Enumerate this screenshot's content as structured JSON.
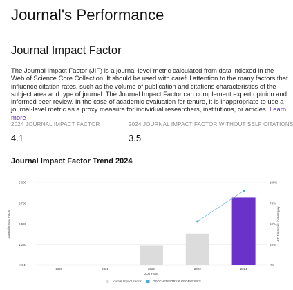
{
  "page": {
    "title": "Journal's Performance"
  },
  "jif_section": {
    "title": "Journal Impact Factor",
    "description": "The Journal Impact Factor (JIF) is a journal-level metric calculated from data indexed in the Web of Science Core Collection. It should be used with careful attention to the many factors that influence citation rates, such as the volume of publication and citations characteristics of the subject area and type of journal. The Journal Impact Factor can complement expert opinion and informed peer review. In the case of academic evaluation for tenure, it is inappropriate to use a journal-level metric as a proxy measure for individual researchers, institutions, or articles.",
    "learn_more": "Learn more"
  },
  "metrics": [
    {
      "label": "2024 JOURNAL IMPACT FACTOR",
      "value": "4.1"
    },
    {
      "label": "2024 JOURNAL IMPACT FACTOR WITHOUT SELF CITATIONS",
      "value": "3.5"
    }
  ],
  "trend": {
    "title": "Journal Impact Factor Trend 2024"
  },
  "chart_data": {
    "type": "bar",
    "xlabel": "JCR Years",
    "ylabel": "Journal Impact Factor",
    "y2label": "JIF Percentile in Category",
    "categories": [
      "2020",
      "2021",
      "2022",
      "2023",
      "2024"
    ],
    "y_ticks": [
      "0.000",
      "1.250",
      "2.500",
      "3.750",
      "5.000"
    ],
    "y2_ticks": [
      "0%",
      "25%",
      "50%",
      "75%",
      "100%"
    ],
    "ylim": [
      0,
      5
    ],
    "y2lim": [
      0,
      100
    ],
    "grid": true,
    "series": [
      {
        "name": "Journal Impact Factor",
        "kind": "bar",
        "values": [
          null,
          null,
          1.2,
          1.9,
          4.1
        ],
        "colors": [
          "#dcdcdc",
          "#dcdcdc",
          "#dcdcdc",
          "#dcdcdc",
          "#6a32c9"
        ]
      },
      {
        "name": "GEOCHEMISTRY & GEOPHYSICS",
        "kind": "line",
        "axis": "right",
        "color": "#4fa8d6",
        "values": [
          null,
          null,
          null,
          53,
          90
        ]
      }
    ],
    "legend_position": "bottom"
  }
}
